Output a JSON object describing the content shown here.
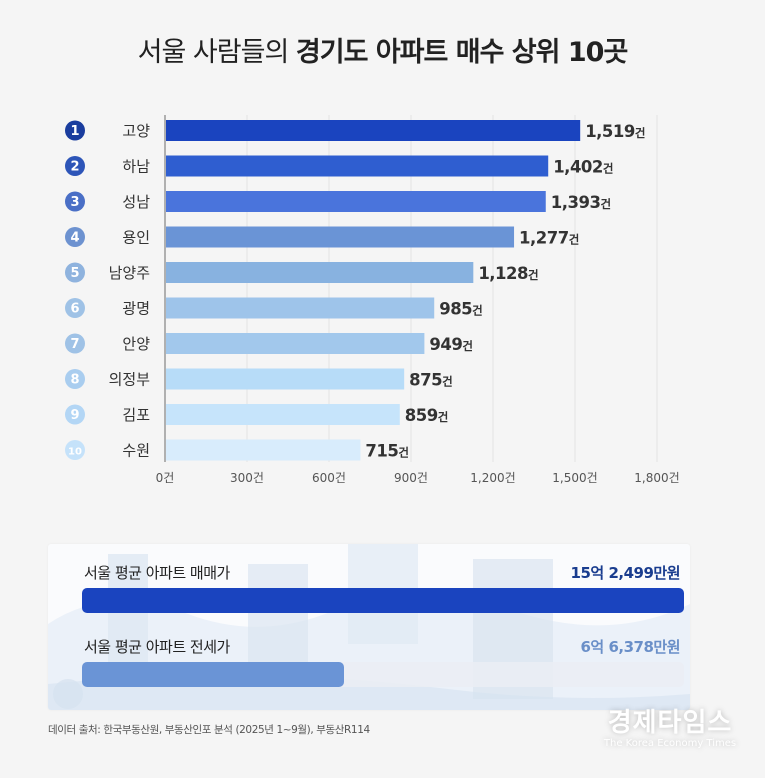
{
  "title": {
    "normal": "서울 사람들의 ",
    "bold": "경기도 아파트 매수 상위 10곳"
  },
  "chart_data": {
    "type": "bar",
    "orientation": "horizontal",
    "title": "서울 사람들의 경기도 아파트 매수 상위 10곳",
    "xlabel": "",
    "ylabel": "",
    "xlim": [
      0,
      1800
    ],
    "grid": true,
    "ranks": [
      "1",
      "2",
      "3",
      "4",
      "5",
      "6",
      "7",
      "8",
      "9",
      "10"
    ],
    "categories": [
      "고양",
      "하남",
      "성남",
      "용인",
      "남양주",
      "광명",
      "안양",
      "의정부",
      "김포",
      "수원"
    ],
    "values": [
      1519,
      1402,
      1393,
      1277,
      1128,
      985,
      949,
      875,
      859,
      715
    ],
    "value_labels": [
      "1,519",
      "1,402",
      "1,393",
      "1,277",
      "1,128",
      "985",
      "949",
      "875",
      "859",
      "715"
    ],
    "value_unit": "건",
    "x_ticks": [
      0,
      300,
      600,
      900,
      1200,
      1500,
      1800
    ],
    "x_tick_labels": [
      "0건",
      "300건",
      "600건",
      "900건",
      "1,200건",
      "1,500건",
      "1,800건"
    ],
    "bar_colors": [
      "#1a44bf",
      "#2f5ed0",
      "#4a74dc",
      "#6a94d6",
      "#88b2e0",
      "#9ec4ea",
      "#a2c8ec",
      "#b7dcf8",
      "#c6e4fb",
      "#d8ecfc"
    ],
    "rank_colors": [
      "#1a3d9e",
      "#2d55b8",
      "#4a6fc6",
      "#6d92d0",
      "#8fb3de",
      "#9fc2e6",
      "#9fc2e6",
      "#a9cdef",
      "#b3d6f5",
      "#c5e2fa"
    ]
  },
  "comparison": {
    "rows": [
      {
        "label": "서울 평균 아파트 매매가",
        "value": "15억 2,499만원",
        "amount_manwon": 152499,
        "color": "#1a44bf",
        "value_color": "#1a3d8f"
      },
      {
        "label": "서울 평균 아파트 전세가",
        "value": "6억 6,378만원",
        "amount_manwon": 66378,
        "color": "#6a94d6",
        "value_color": "#6a8fc8"
      }
    ]
  },
  "source": "데이터 출처: 한국부동산원, 부동산인포 분석 (2025년 1~9월), 부동산R114",
  "watermark": {
    "korean": "경제타임스",
    "english": "The Korea Economy Times"
  }
}
